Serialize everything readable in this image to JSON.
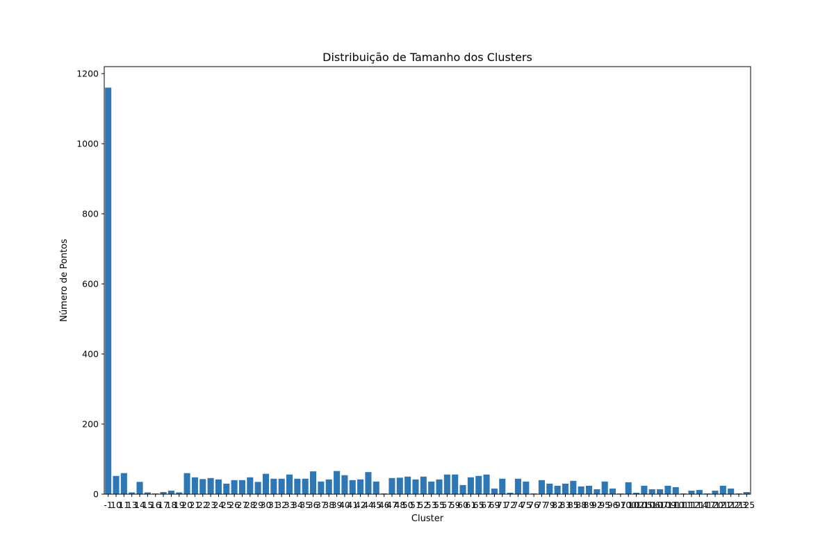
{
  "chart_data": {
    "type": "bar",
    "title": "Distribuição de Tamanho dos Clusters",
    "xlabel": "Cluster",
    "ylabel": "Número de Pontos",
    "ylim": [
      0,
      1220
    ],
    "yticks": [
      0,
      200,
      400,
      600,
      800,
      1000,
      1200
    ],
    "grid": false,
    "bar_color": "#2f77b4",
    "categories": [
      "-1",
      "10",
      "11",
      "13",
      "14",
      "15",
      "16",
      "17",
      "18",
      "19",
      "20",
      "21",
      "22",
      "23",
      "24",
      "25",
      "26",
      "27",
      "28",
      "29",
      "30",
      "31",
      "32",
      "33",
      "34",
      "35",
      "36",
      "37",
      "38",
      "39",
      "40",
      "41",
      "42",
      "44",
      "45",
      "46",
      "47",
      "48",
      "50",
      "51",
      "52",
      "53",
      "55",
      "57",
      "59",
      "60",
      "61",
      "65",
      "67",
      "69",
      "71",
      "72",
      "74",
      "75",
      "76",
      "77",
      "79",
      "82",
      "83",
      "85",
      "88",
      "89",
      "92",
      "95",
      "96",
      "97",
      "100",
      "102",
      "105",
      "106",
      "107",
      "109",
      "110",
      "111",
      "112",
      "114",
      "117",
      "120",
      "121",
      "122",
      "123",
      "125"
    ],
    "values": [
      1160,
      52,
      60,
      5,
      35,
      5,
      2,
      6,
      10,
      5,
      60,
      48,
      43,
      46,
      42,
      30,
      40,
      40,
      48,
      35,
      58,
      44,
      44,
      56,
      44,
      44,
      65,
      36,
      42,
      66,
      54,
      40,
      42,
      63,
      36,
      2,
      46,
      47,
      50,
      42,
      50,
      36,
      42,
      56,
      56,
      26,
      48,
      52,
      56,
      16,
      44,
      4,
      44,
      36,
      2,
      40,
      30,
      24,
      30,
      38,
      22,
      24,
      14,
      36,
      16,
      2,
      34,
      4,
      24,
      14,
      14,
      24,
      20,
      2,
      10,
      12,
      2,
      10,
      24,
      16,
      2,
      6
    ]
  }
}
